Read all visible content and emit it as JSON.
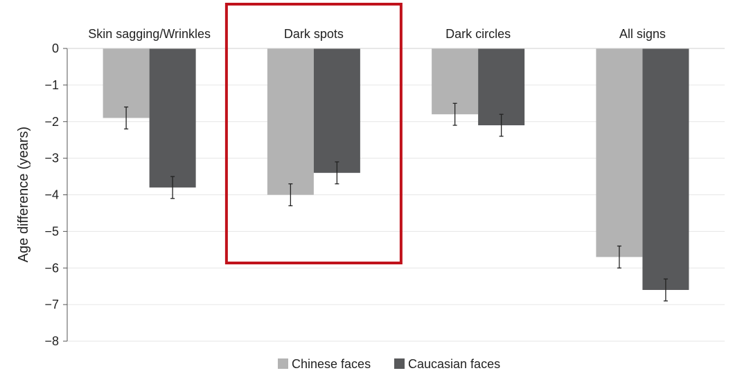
{
  "chart_data": {
    "type": "bar",
    "categories": [
      "Skin sagging/Wrinkles",
      "Dark spots",
      "Dark circles",
      "All signs"
    ],
    "series": [
      {
        "name": "Chinese faces",
        "values": [
          -1.9,
          -4.0,
          -1.8,
          -5.7
        ],
        "errors": [
          0.3,
          0.3,
          0.3,
          0.3
        ],
        "color": "#b3b3b3"
      },
      {
        "name": "Caucasian faces",
        "values": [
          -3.8,
          -3.4,
          -2.1,
          -6.6
        ],
        "errors": [
          0.3,
          0.3,
          0.3,
          0.3
        ],
        "color": "#58595b"
      }
    ],
    "ylabel": "Age difference (years)",
    "xlabel": "",
    "ylim": [
      -8,
      0
    ],
    "yticks": [
      0,
      -1,
      -2,
      -3,
      -4,
      -5,
      -6,
      -7,
      -8
    ],
    "ytick_labels": [
      "0",
      "−1",
      "−2",
      "−3",
      "−4",
      "−5",
      "−6",
      "−7",
      "−8"
    ],
    "grid": true,
    "legend_position": "bottom-center",
    "category_labels_position": "top",
    "highlight": {
      "category": "Dark spots",
      "color": "#c0121b"
    }
  }
}
